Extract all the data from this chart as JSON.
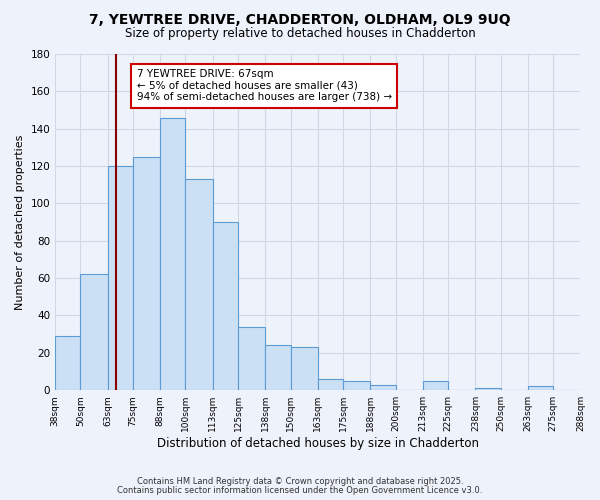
{
  "title": "7, YEWTREE DRIVE, CHADDERTON, OLDHAM, OL9 9UQ",
  "subtitle": "Size of property relative to detached houses in Chadderton",
  "xlabel": "Distribution of detached houses by size in Chadderton",
  "ylabel": "Number of detached properties",
  "bin_edges": [
    38,
    50,
    63,
    75,
    88,
    100,
    113,
    125,
    138,
    150,
    163,
    175,
    188,
    200,
    213,
    225,
    238,
    250,
    263,
    275,
    288
  ],
  "bar_heights": [
    29,
    62,
    120,
    125,
    146,
    113,
    90,
    34,
    24,
    23,
    6,
    5,
    3,
    0,
    5,
    0,
    1,
    0,
    2,
    0
  ],
  "bar_color": "#cce0f5",
  "bar_edge_color": "#5b9bd5",
  "vline_x": 67,
  "vline_color": "#8b0000",
  "ylim": [
    0,
    180
  ],
  "yticks": [
    0,
    20,
    40,
    60,
    80,
    100,
    120,
    140,
    160,
    180
  ],
  "annotation_text": "7 YEWTREE DRIVE: 67sqm\n← 5% of detached houses are smaller (43)\n94% of semi-detached houses are larger (738) →",
  "footer_line1": "Contains HM Land Registry data © Crown copyright and database right 2025.",
  "footer_line2": "Contains public sector information licensed under the Open Government Licence v3.0.",
  "background_color": "#eef2fa",
  "grid_color": "#d0d8e8",
  "title_fontsize": 10,
  "subtitle_fontsize": 8.5,
  "tick_labels": [
    "38sqm",
    "50sqm",
    "63sqm",
    "75sqm",
    "88sqm",
    "100sqm",
    "113sqm",
    "125sqm",
    "138sqm",
    "150sqm",
    "163sqm",
    "175sqm",
    "188sqm",
    "200sqm",
    "213sqm",
    "225sqm",
    "238sqm",
    "250sqm",
    "263sqm",
    "275sqm",
    "288sqm"
  ]
}
